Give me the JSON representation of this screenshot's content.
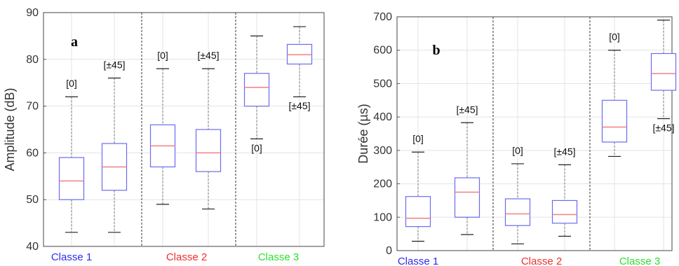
{
  "colors": {
    "box": "#6b6bf0",
    "median": "#f08080",
    "whisker": "#777777",
    "grid": "#e3e3e3",
    "separator": "#555555",
    "class1": "#2d2df0",
    "class2": "#f02d2d",
    "class3": "#2de02d"
  },
  "chart_data": [
    {
      "type": "boxplot",
      "panel_label": "a",
      "ylabel": "Amplitude (dB)",
      "ylim": [
        40,
        90
      ],
      "yticks": [
        40,
        50,
        60,
        70,
        80,
        90
      ],
      "grid": true,
      "groups": [
        {
          "name": "Classe 1",
          "color": "#2d2df0"
        },
        {
          "name": "Classe 2",
          "color": "#f02d2d"
        },
        {
          "name": "Classe 3",
          "color": "#2de02d"
        }
      ],
      "boxes": [
        {
          "group": 0,
          "label": "[0]",
          "label_pos": "above",
          "min": 43,
          "q1": 50,
          "median": 54,
          "q3": 59,
          "max": 72
        },
        {
          "group": 0,
          "label": "[±45]",
          "label_pos": "above",
          "min": 43,
          "q1": 52,
          "median": 57,
          "q3": 62,
          "max": 76
        },
        {
          "group": 1,
          "label": "[0]",
          "label_pos": "above",
          "min": 49,
          "q1": 57,
          "median": 61.5,
          "q3": 66,
          "max": 78
        },
        {
          "group": 1,
          "label": "[±45]",
          "label_pos": "above",
          "min": 48,
          "q1": 56,
          "median": 60,
          "q3": 65,
          "max": 78
        },
        {
          "group": 2,
          "label": "[0]",
          "label_pos": "below",
          "min": 63,
          "q1": 70,
          "median": 74,
          "q3": 77,
          "max": 85
        },
        {
          "group": 2,
          "label": "[±45]",
          "label_pos": "below",
          "min": 72,
          "q1": 79,
          "median": 81,
          "q3": 83.2,
          "max": 87
        }
      ]
    },
    {
      "type": "boxplot",
      "panel_label": "b",
      "ylabel": "Durée (µs)",
      "ylim": [
        0,
        700
      ],
      "yticks": [
        0,
        100,
        200,
        300,
        400,
        500,
        600,
        700
      ],
      "grid": true,
      "groups": [
        {
          "name": "Classe 1",
          "color": "#2d2df0"
        },
        {
          "name": "Classe 2",
          "color": "#f02d2d"
        },
        {
          "name": "Classe 3",
          "color": "#2de02d"
        }
      ],
      "boxes": [
        {
          "group": 0,
          "label": "[0]",
          "label_pos": "above",
          "min": 28,
          "q1": 72,
          "median": 97,
          "q3": 162,
          "max": 295
        },
        {
          "group": 0,
          "label": "[±45]",
          "label_pos": "above",
          "min": 48,
          "q1": 100,
          "median": 175,
          "q3": 218,
          "max": 383
        },
        {
          "group": 1,
          "label": "[0]",
          "label_pos": "above",
          "min": 20,
          "q1": 75,
          "median": 110,
          "q3": 155,
          "max": 260
        },
        {
          "group": 1,
          "label": "[±45]",
          "label_pos": "above",
          "min": 43,
          "q1": 82,
          "median": 108,
          "q3": 150,
          "max": 257
        },
        {
          "group": 2,
          "label": "[0]",
          "label_pos": "above",
          "min": 282,
          "q1": 325,
          "median": 370,
          "q3": 450,
          "max": 600
        },
        {
          "group": 2,
          "label": "[±45]",
          "label_pos": "below",
          "min": 395,
          "q1": 480,
          "median": 530,
          "q3": 590,
          "max": 690
        }
      ]
    }
  ]
}
